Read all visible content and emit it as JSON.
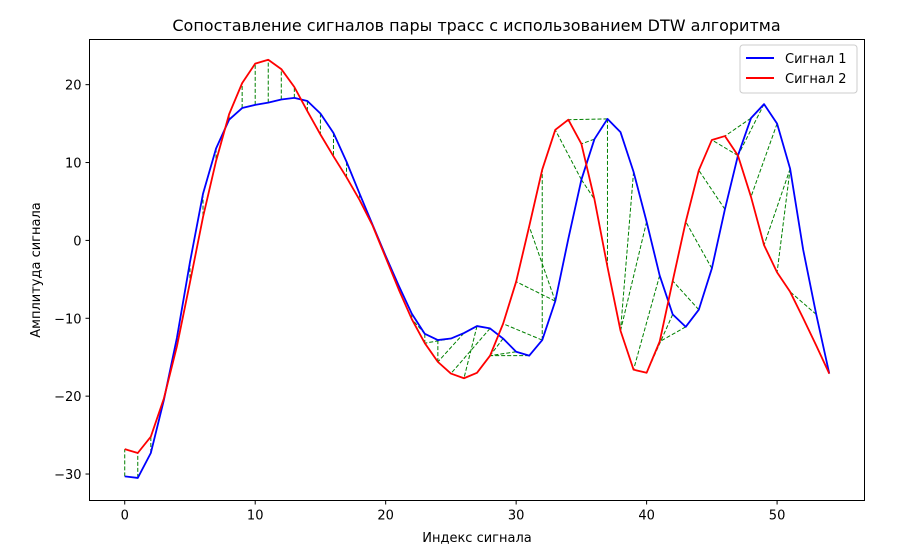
{
  "chart_data": {
    "type": "line",
    "title": "Сопоставление сигналов пары трасс с использованием DTW алгоритма",
    "xlabel": "Индекс сигнала",
    "ylabel": "Амплитуда сигнала",
    "xlim": [
      -2.7,
      56.7
    ],
    "ylim": [
      -33.4,
      25.8
    ],
    "xticks": [
      0,
      10,
      20,
      30,
      40,
      50
    ],
    "yticks": [
      -30,
      -20,
      -10,
      0,
      10,
      20
    ],
    "grid": false,
    "legend_position": "top-right",
    "series": [
      {
        "name": "Сигнал 1",
        "color": "#0000ff",
        "values": [
          -30.3,
          -30.5,
          -27.3,
          -20.5,
          -12.5,
          -2.8,
          6.0,
          11.8,
          15.5,
          17.0,
          17.4,
          17.7,
          18.1,
          18.3,
          17.9,
          16.3,
          13.8,
          10.1,
          6.0,
          2.0,
          -2.0,
          -5.8,
          -9.4,
          -12.0,
          -12.8,
          -12.6,
          -11.9,
          -11.0,
          -11.3,
          -12.6,
          -14.3,
          -14.8,
          -12.8,
          -7.8,
          0.2,
          7.8,
          13.0,
          15.6,
          13.9,
          8.8,
          2.4,
          -4.5,
          -9.5,
          -11.1,
          -8.9,
          -3.6,
          4.0,
          10.9,
          15.7,
          17.5,
          15.0,
          9.2,
          -1.2,
          -9.5,
          -17.1
        ]
      },
      {
        "name": "Сигнал 2",
        "color": "#ff0000",
        "values": [
          -26.8,
          -27.3,
          -25.2,
          -20.3,
          -13.6,
          -5.4,
          3.0,
          10.2,
          16.2,
          20.2,
          22.7,
          23.2,
          22.0,
          19.7,
          16.6,
          13.6,
          10.8,
          8.1,
          5.2,
          1.9,
          -2.2,
          -6.3,
          -10.1,
          -13.2,
          -15.6,
          -17.1,
          -17.7,
          -17.0,
          -14.8,
          -10.7,
          -5.3,
          1.8,
          9.1,
          14.2,
          15.5,
          12.4,
          5.3,
          -3.4,
          -11.6,
          -16.6,
          -17.0,
          -13.0,
          -5.2,
          2.4,
          9.0,
          12.9,
          13.4,
          10.9,
          5.6,
          -0.6,
          -4.1,
          -6.6,
          -10.0,
          -13.5,
          -17.1
        ]
      }
    ],
    "dtw_connections": {
      "name": "DTW",
      "color": "#008000",
      "pairs": [
        [
          0,
          0
        ],
        [
          1,
          1
        ],
        [
          2,
          2
        ],
        [
          3,
          3
        ],
        [
          4,
          4
        ],
        [
          5,
          5
        ],
        [
          6,
          6
        ],
        [
          7,
          7
        ],
        [
          8,
          8
        ],
        [
          9,
          9
        ],
        [
          10,
          10
        ],
        [
          11,
          11
        ],
        [
          12,
          12
        ],
        [
          13,
          13
        ],
        [
          14,
          14
        ],
        [
          15,
          15
        ],
        [
          16,
          16
        ],
        [
          17,
          17
        ],
        [
          18,
          18
        ],
        [
          19,
          19
        ],
        [
          20,
          20
        ],
        [
          21,
          21
        ],
        [
          22,
          22
        ],
        [
          23,
          22
        ],
        [
          23,
          23
        ],
        [
          24,
          24
        ],
        [
          25,
          23
        ],
        [
          26,
          24
        ],
        [
          27,
          26
        ],
        [
          28,
          25
        ],
        [
          29,
          27
        ],
        [
          30,
          28
        ],
        [
          31,
          28
        ],
        [
          32,
          29
        ],
        [
          33,
          30
        ],
        [
          33,
          31
        ],
        [
          32,
          32
        ],
        [
          35,
          33
        ],
        [
          37,
          34
        ],
        [
          36,
          35
        ],
        [
          35,
          36
        ],
        [
          37,
          37
        ],
        [
          39,
          38
        ],
        [
          40,
          38
        ],
        [
          41,
          39
        ],
        [
          42,
          40
        ],
        [
          43,
          41
        ],
        [
          44,
          42
        ],
        [
          45,
          43
        ],
        [
          46,
          44
        ],
        [
          47,
          45
        ],
        [
          48,
          46
        ],
        [
          49,
          47
        ],
        [
          50,
          48
        ],
        [
          51,
          49
        ],
        [
          51,
          50
        ],
        [
          53,
          51
        ],
        [
          54,
          52
        ],
        [
          54,
          53
        ],
        [
          54,
          54
        ]
      ]
    }
  }
}
